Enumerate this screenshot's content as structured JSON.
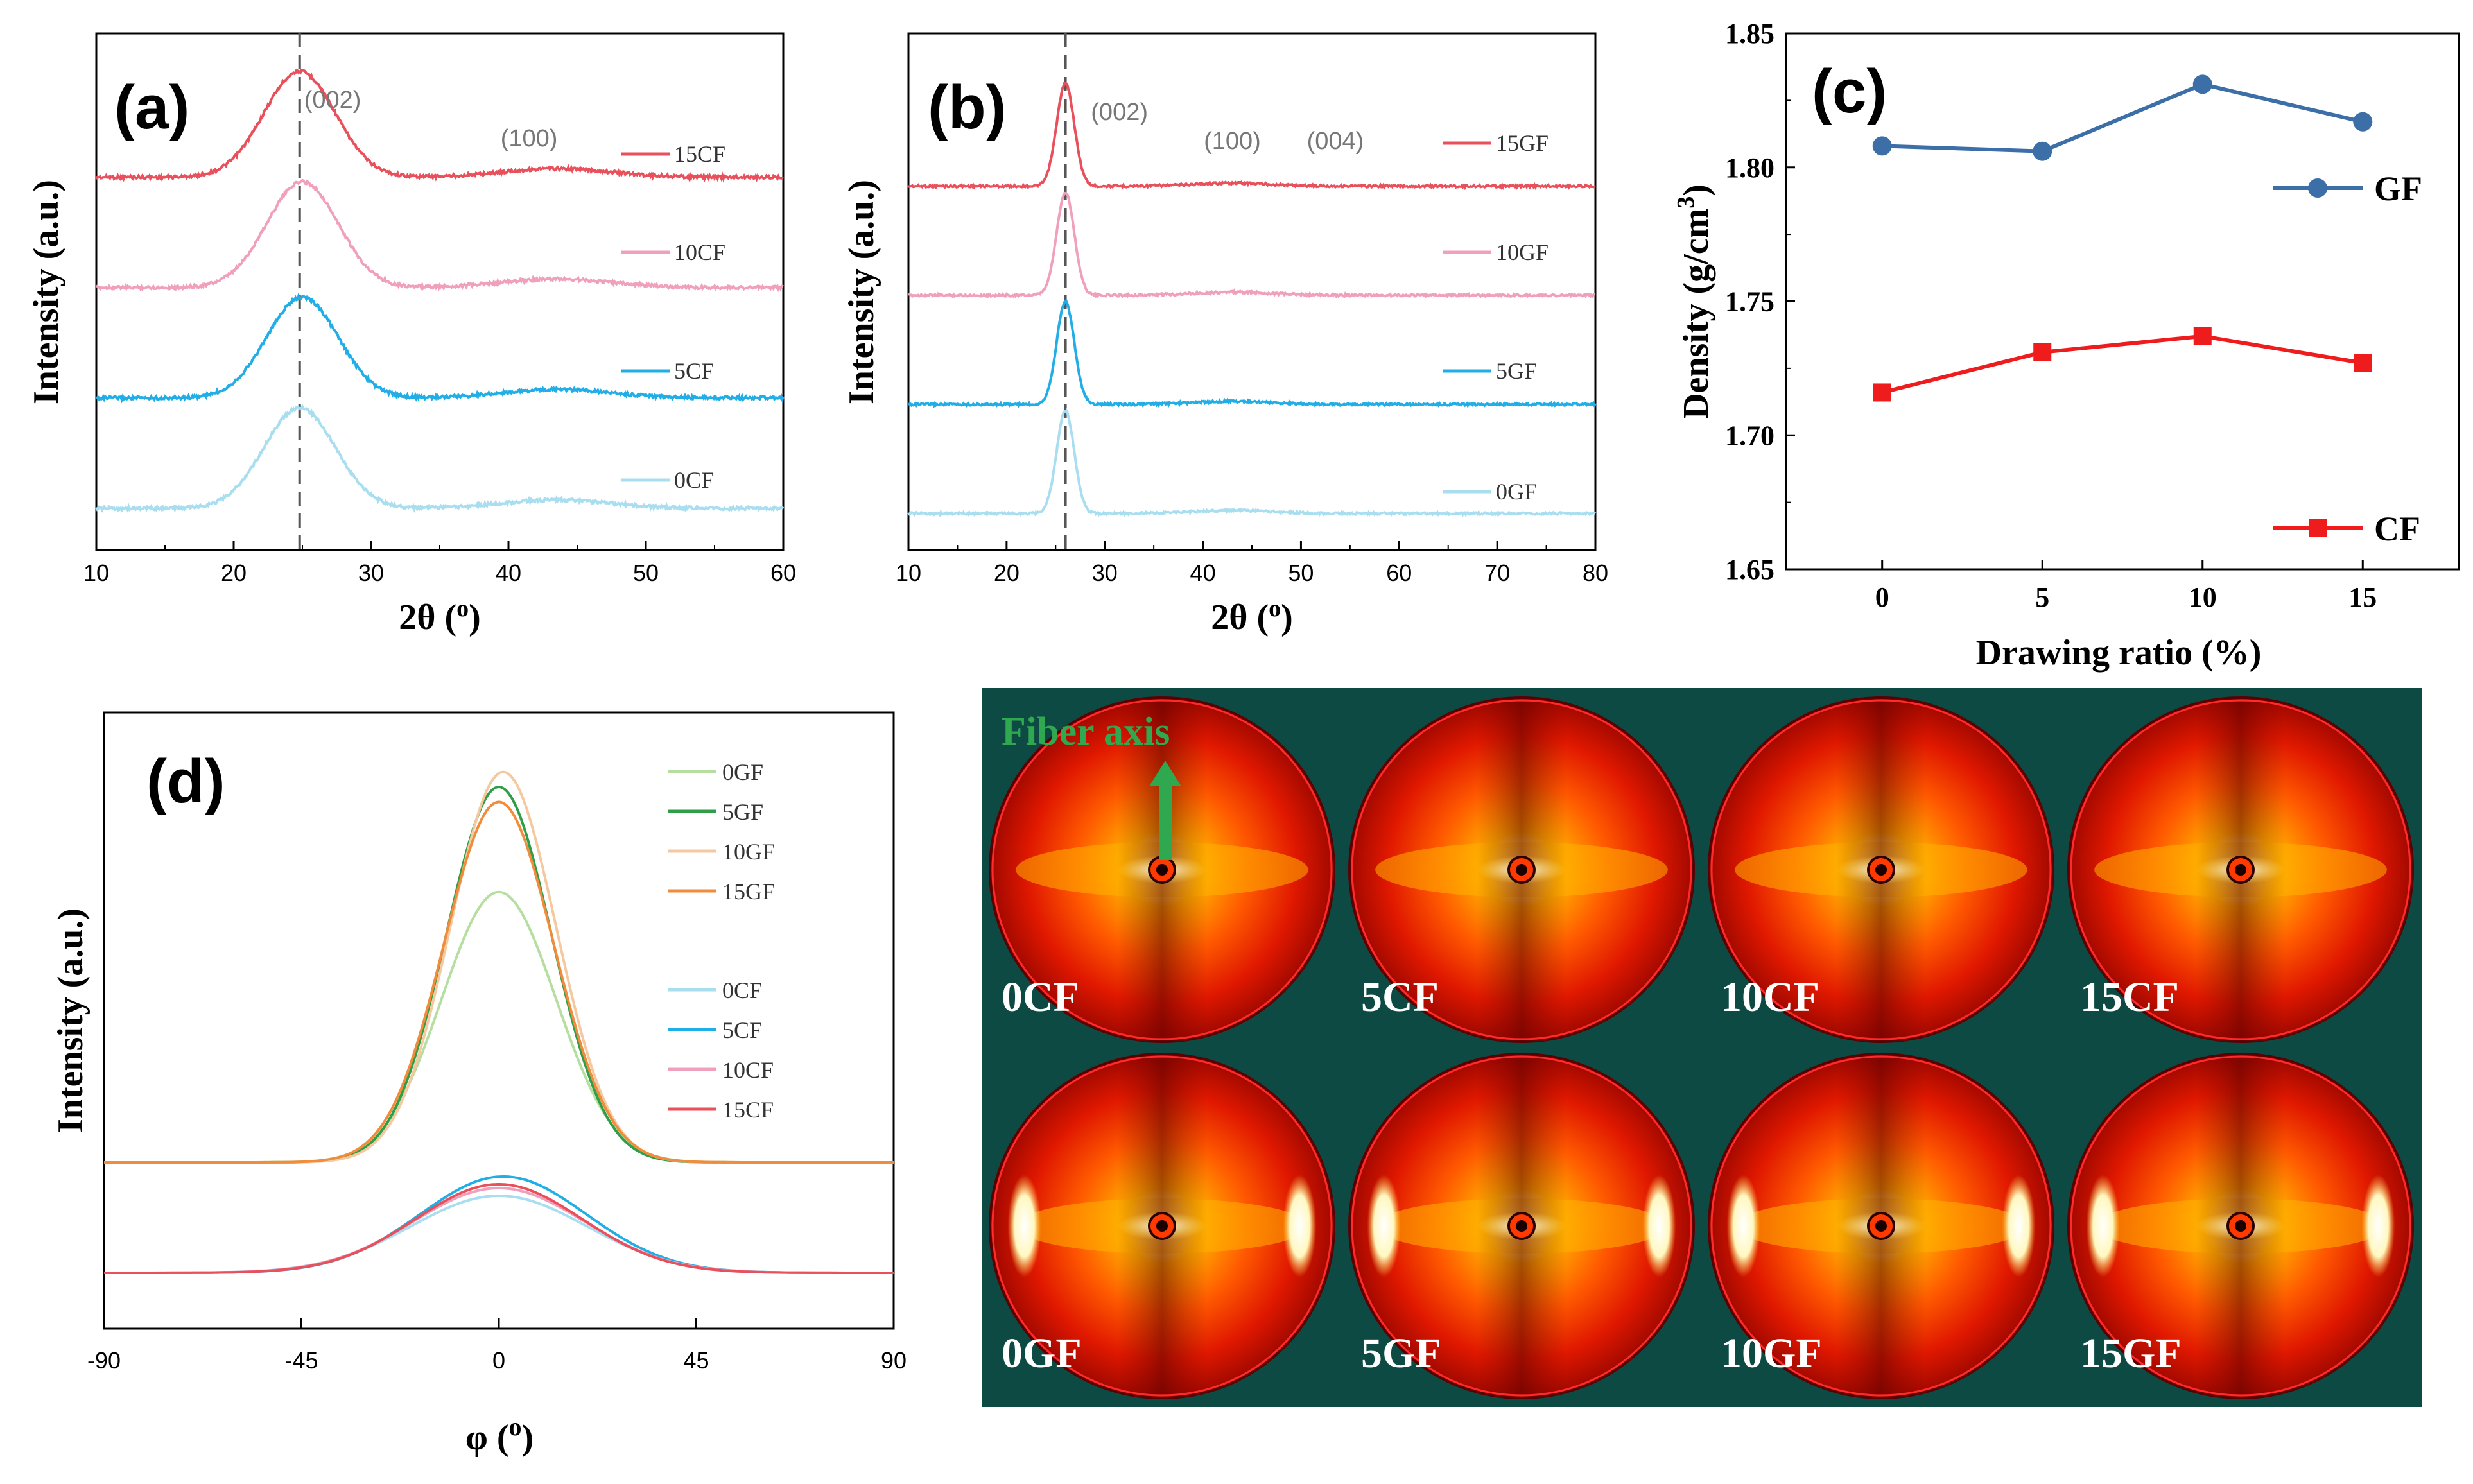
{
  "figure": {
    "panel_a_label": "(a)",
    "panel_b_label": "(b)",
    "panel_c_label": "(c)",
    "panel_d_label": "(d)",
    "fiber_axis_label": "Fiber axis"
  },
  "chart_data": [
    {
      "id": "a",
      "type": "line",
      "title": "(a)",
      "xlabel": "2θ (°)",
      "ylabel": "Intensity (a.u.)",
      "xlim": [
        10,
        60
      ],
      "xticks": [
        "10",
        "20",
        "30",
        "40",
        "50",
        "60"
      ],
      "reference_line_x": 24.8,
      "peak_labels": [
        {
          "text": "(002)",
          "x": 27.2
        },
        {
          "text": "(100)",
          "x": 41.5
        }
      ],
      "series": [
        {
          "name": "15CF",
          "color": "#e8505b",
          "offset": 3,
          "peak_x": 24.8,
          "peak_h": 1.0,
          "peak_w": 2.6,
          "broad_x": 43.5,
          "broad_h": 0.08
        },
        {
          "name": "10CF",
          "color": "#f0a0bc",
          "offset": 2,
          "peak_x": 25.0,
          "peak_h": 1.0,
          "peak_w": 2.6,
          "broad_x": 43.5,
          "broad_h": 0.08
        },
        {
          "name": "5CF",
          "color": "#21aee6",
          "offset": 1,
          "peak_x": 25.0,
          "peak_h": 0.95,
          "peak_w": 2.6,
          "broad_x": 43.5,
          "broad_h": 0.08
        },
        {
          "name": "0CF",
          "color": "#a8def0",
          "offset": 0,
          "peak_x": 24.8,
          "peak_h": 0.95,
          "peak_w": 2.6,
          "broad_x": 43.5,
          "broad_h": 0.08
        }
      ]
    },
    {
      "id": "b",
      "type": "line",
      "title": "(b)",
      "xlabel": "2θ (°)",
      "ylabel": "Intensity (a.u.)",
      "xlim": [
        10,
        80
      ],
      "xticks": [
        "10",
        "20",
        "30",
        "40",
        "50",
        "60",
        "70",
        "80"
      ],
      "reference_line_x": 26,
      "peak_labels": [
        {
          "text": "(002)",
          "x": 31.5
        },
        {
          "text": "(100)",
          "x": 43
        },
        {
          "text": "(004)",
          "x": 53.5
        }
      ],
      "series": [
        {
          "name": "15GF",
          "color": "#e8505b",
          "offset": 3,
          "peak_x": 26,
          "peak_h": 1.0,
          "peak_w": 0.9,
          "broad_x": 43,
          "broad_h": 0.03
        },
        {
          "name": "10GF",
          "color": "#f0a0bc",
          "offset": 2,
          "peak_x": 26,
          "peak_h": 1.0,
          "peak_w": 0.9,
          "broad_x": 43,
          "broad_h": 0.03
        },
        {
          "name": "5GF",
          "color": "#21aee6",
          "offset": 1,
          "peak_x": 26,
          "peak_h": 1.0,
          "peak_w": 0.9,
          "broad_x": 43,
          "broad_h": 0.03
        },
        {
          "name": "0GF",
          "color": "#a8def0",
          "offset": 0,
          "peak_x": 26,
          "peak_h": 1.0,
          "peak_w": 0.9,
          "broad_x": 43,
          "broad_h": 0.03
        }
      ]
    },
    {
      "id": "c",
      "type": "line",
      "title": "(c)",
      "xlabel": "Drawing ratio (%)",
      "ylabel": "Density (g/cm³)",
      "ylabel_main": "Density (g/cm",
      "ylabel_sup": "3",
      "ylabel_end": ")",
      "xlim": [
        -3,
        18
      ],
      "ylim": [
        1.65,
        1.85
      ],
      "xticks": [
        "0",
        "5",
        "10",
        "15"
      ],
      "yticks": [
        "1.65",
        "1.70",
        "1.75",
        "1.80",
        "1.85"
      ],
      "x": [
        0,
        5,
        10,
        15
      ],
      "series": [
        {
          "name": "GF",
          "color": "#3c6ea8",
          "marker": "circle",
          "values": [
            1.808,
            1.806,
            1.831,
            1.817
          ]
        },
        {
          "name": "CF",
          "color": "#ee1c1c",
          "marker": "square",
          "values": [
            1.716,
            1.731,
            1.737,
            1.727
          ]
        }
      ]
    },
    {
      "id": "d",
      "type": "line",
      "title": "(d)",
      "xlabel": "φ (°)",
      "ylabel": "Intensity (a.u.)",
      "xlim": [
        -90,
        90
      ],
      "xticks": [
        "-90",
        "-45",
        "0",
        "45",
        "90"
      ],
      "series": [
        {
          "name": "0GF",
          "color": "#b5dea0",
          "base": 1.0,
          "amp": 0.72,
          "center": 0,
          "sigma": 13
        },
        {
          "name": "5GF",
          "color": "#2e9e48",
          "base": 1.0,
          "amp": 1.0,
          "center": 0,
          "sigma": 12
        },
        {
          "name": "10GF",
          "color": "#f5c9a0",
          "base": 1.0,
          "amp": 1.04,
          "center": 1,
          "sigma": 12
        },
        {
          "name": "15GF",
          "color": "#f08c3c",
          "base": 1.0,
          "amp": 0.96,
          "center": 0,
          "sigma": 12.5
        },
        {
          "name": "0CF",
          "color": "#a8def0",
          "base": 0.0,
          "amp": 0.4,
          "center": 0,
          "sigma": 20
        },
        {
          "name": "5CF",
          "color": "#21aee6",
          "base": 0.0,
          "amp": 0.5,
          "center": 1,
          "sigma": 19
        },
        {
          "name": "10CF",
          "color": "#f0a0bc",
          "base": 0.0,
          "amp": 0.44,
          "center": 0,
          "sigma": 19.5
        },
        {
          "name": "15CF",
          "color": "#e8505b",
          "base": 0.0,
          "amp": 0.46,
          "center": 0,
          "sigma": 19
        }
      ]
    }
  ],
  "saxs_images": {
    "background_color": "#0d4a44",
    "top_row": [
      "0CF",
      "5CF",
      "10CF",
      "15CF"
    ],
    "bottom_row": [
      "0GF",
      "5GF",
      "10GF",
      "15GF"
    ]
  }
}
